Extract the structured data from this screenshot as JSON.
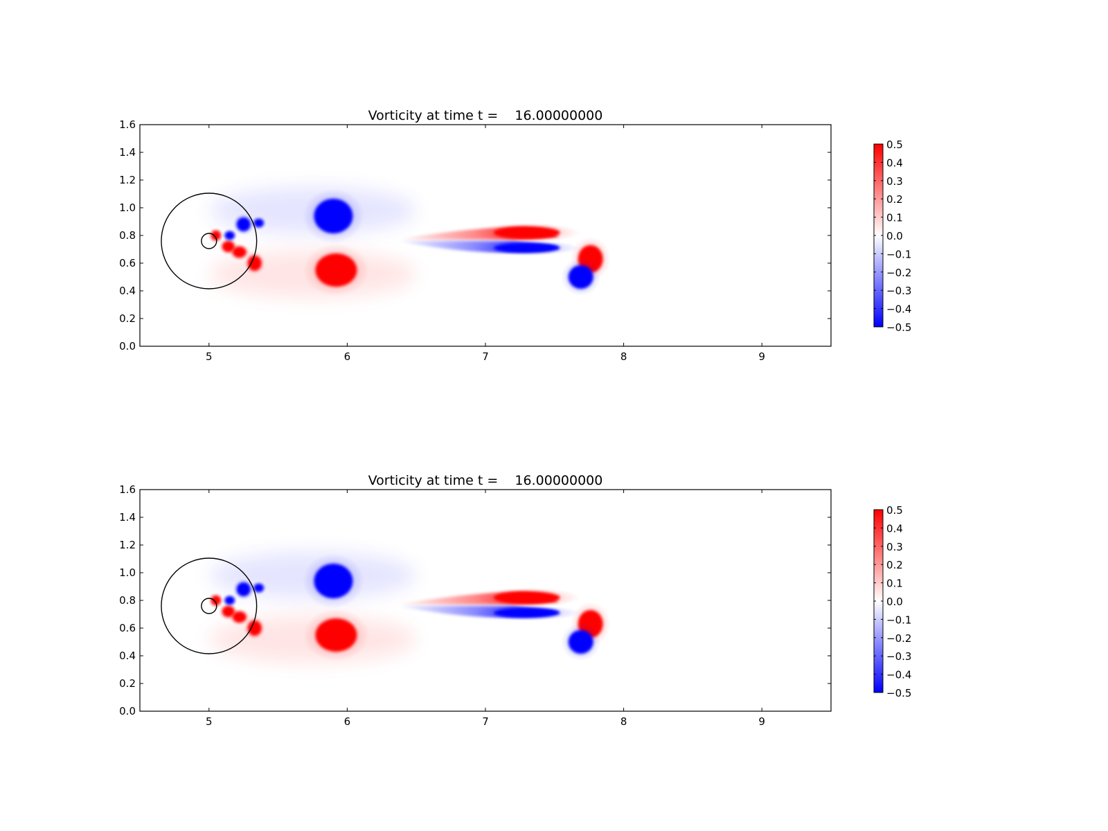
{
  "chart_data": [
    {
      "type": "heatmap",
      "title": "Vorticity at time t =    16.00000000",
      "xlim": [
        4.5,
        9.5
      ],
      "ylim": [
        0.0,
        1.6
      ],
      "xticks": [
        5,
        6,
        7,
        8,
        9
      ],
      "xtick_labels": [
        "5",
        "6",
        "7",
        "8",
        "9"
      ],
      "yticks": [
        0.0,
        0.2,
        0.4,
        0.6,
        0.8,
        1.0,
        1.2,
        1.4,
        1.6
      ],
      "ytick_labels": [
        "0.0",
        "0.2",
        "0.4",
        "0.6",
        "0.8",
        "1.0",
        "1.2",
        "1.4",
        "1.6"
      ],
      "colorbar": {
        "range": [
          -0.5,
          0.5
        ],
        "ticks": [
          0.5,
          0.4,
          0.3,
          0.2,
          0.1,
          0.0,
          -0.1,
          -0.2,
          -0.3,
          -0.4,
          -0.5
        ],
        "tick_labels": [
          "0.5",
          "0.4",
          "0.3",
          "0.2",
          "0.1",
          "0.0",
          "−0.1",
          "−0.2",
          "−0.3",
          "−0.4",
          "−0.5"
        ],
        "colormap": "bwr",
        "low_color": "#0000ff",
        "mid_color": "#ffffff",
        "high_color": "#ff0000"
      },
      "overlays": [
        {
          "shape": "circle",
          "center": [
            5.0,
            0.76
          ],
          "radius": 0.345
        },
        {
          "shape": "circle",
          "center": [
            5.0,
            0.76
          ],
          "radius": 0.055
        }
      ],
      "vortices": [
        {
          "x": 5.05,
          "y": 0.8,
          "value": 0.5
        },
        {
          "x": 5.14,
          "y": 0.72,
          "value": 0.5
        },
        {
          "x": 5.22,
          "y": 0.68,
          "value": 0.5
        },
        {
          "x": 5.33,
          "y": 0.6,
          "value": 0.5
        },
        {
          "x": 5.15,
          "y": 0.8,
          "value": -0.5
        },
        {
          "x": 5.25,
          "y": 0.88,
          "value": -0.5
        },
        {
          "x": 5.36,
          "y": 0.89,
          "value": -0.5
        },
        {
          "x": 5.9,
          "y": 0.94,
          "value": -0.5
        },
        {
          "x": 5.92,
          "y": 0.55,
          "value": 0.5
        },
        {
          "x": 7.3,
          "y": 0.82,
          "value": 0.5
        },
        {
          "x": 7.3,
          "y": 0.71,
          "value": -0.5
        },
        {
          "x": 7.76,
          "y": 0.63,
          "value": 0.5
        },
        {
          "x": 7.69,
          "y": 0.5,
          "value": -0.5
        }
      ]
    },
    {
      "type": "heatmap",
      "title": "Vorticity at time t =    16.00000000",
      "xlim": [
        4.5,
        9.5
      ],
      "ylim": [
        0.0,
        1.6
      ],
      "xticks": [
        5,
        6,
        7,
        8,
        9
      ],
      "xtick_labels": [
        "5",
        "6",
        "7",
        "8",
        "9"
      ],
      "yticks": [
        0.0,
        0.2,
        0.4,
        0.6,
        0.8,
        1.0,
        1.2,
        1.4,
        1.6
      ],
      "ytick_labels": [
        "0.0",
        "0.2",
        "0.4",
        "0.6",
        "0.8",
        "1.0",
        "1.2",
        "1.4",
        "1.6"
      ],
      "colorbar": {
        "range": [
          -0.5,
          0.5
        ],
        "ticks": [
          0.5,
          0.4,
          0.3,
          0.2,
          0.1,
          0.0,
          -0.1,
          -0.2,
          -0.3,
          -0.4,
          -0.5
        ],
        "tick_labels": [
          "0.5",
          "0.4",
          "0.3",
          "0.2",
          "0.1",
          "0.0",
          "−0.1",
          "−0.2",
          "−0.3",
          "−0.4",
          "−0.5"
        ],
        "colormap": "bwr",
        "low_color": "#0000ff",
        "mid_color": "#ffffff",
        "high_color": "#ff0000"
      },
      "overlays": [
        {
          "shape": "circle",
          "center": [
            5.0,
            0.76
          ],
          "radius": 0.345
        },
        {
          "shape": "circle",
          "center": [
            5.0,
            0.76
          ],
          "radius": 0.055
        }
      ],
      "vortices": [
        {
          "x": 5.05,
          "y": 0.8,
          "value": 0.5
        },
        {
          "x": 5.14,
          "y": 0.72,
          "value": 0.5
        },
        {
          "x": 5.22,
          "y": 0.68,
          "value": 0.5
        },
        {
          "x": 5.33,
          "y": 0.6,
          "value": 0.5
        },
        {
          "x": 5.15,
          "y": 0.8,
          "value": -0.5
        },
        {
          "x": 5.25,
          "y": 0.88,
          "value": -0.5
        },
        {
          "x": 5.36,
          "y": 0.89,
          "value": -0.5
        },
        {
          "x": 5.9,
          "y": 0.94,
          "value": -0.5
        },
        {
          "x": 5.92,
          "y": 0.55,
          "value": 0.5
        },
        {
          "x": 7.3,
          "y": 0.82,
          "value": 0.5
        },
        {
          "x": 7.3,
          "y": 0.71,
          "value": -0.5
        },
        {
          "x": 7.76,
          "y": 0.63,
          "value": 0.5
        },
        {
          "x": 7.69,
          "y": 0.5,
          "value": -0.5
        }
      ]
    }
  ]
}
